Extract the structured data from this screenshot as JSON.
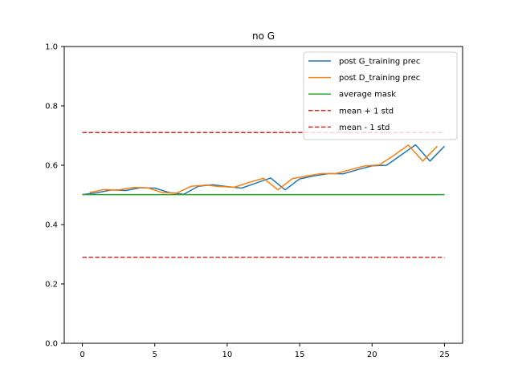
{
  "chart_data": {
    "type": "line",
    "title": "no G",
    "xlabel": "",
    "ylabel": "",
    "xlim": [
      -1.25,
      26.25
    ],
    "ylim": [
      0.0,
      1.0
    ],
    "xticks": [
      0,
      5,
      10,
      15,
      20,
      25
    ],
    "yticks": [
      0.0,
      0.2,
      0.4,
      0.6,
      0.8,
      1.0
    ],
    "xtick_labels": [
      "0",
      "5",
      "10",
      "15",
      "20",
      "25"
    ],
    "ytick_labels": [
      "0.0",
      "0.2",
      "0.4",
      "0.6",
      "0.8",
      "1.0"
    ],
    "grid": false,
    "legend_position": "top-right",
    "series": [
      {
        "name": "post G_training prec",
        "color": "#1f77b4",
        "style": "solid",
        "x": [
          0,
          1,
          2,
          3,
          4,
          5,
          6,
          7,
          8,
          9,
          10,
          11,
          12,
          13,
          14,
          15,
          16,
          17,
          18,
          19,
          20,
          21,
          22,
          23,
          24,
          25
        ],
        "y": [
          0.501,
          0.507,
          0.517,
          0.515,
          0.524,
          0.523,
          0.508,
          0.502,
          0.529,
          0.534,
          0.528,
          0.523,
          0.54,
          0.557,
          0.517,
          0.554,
          0.564,
          0.572,
          0.571,
          0.585,
          0.598,
          0.6,
          0.634,
          0.669,
          0.614,
          0.664
        ]
      },
      {
        "name": "post D_training prec",
        "color": "#ff7f0e",
        "style": "solid",
        "x": [
          0.5,
          1.5,
          2.5,
          3.5,
          4.5,
          5.5,
          6.5,
          7.5,
          8.5,
          9.5,
          10.5,
          11.5,
          12.5,
          13.5,
          14.5,
          15.5,
          16.5,
          17.5,
          18.5,
          19.5,
          20.5,
          21.5,
          22.5,
          23.5,
          24.5
        ],
        "y": [
          0.508,
          0.518,
          0.517,
          0.525,
          0.524,
          0.508,
          0.506,
          0.529,
          0.533,
          0.528,
          0.526,
          0.542,
          0.556,
          0.517,
          0.555,
          0.564,
          0.572,
          0.572,
          0.585,
          0.598,
          0.601,
          0.633,
          0.668,
          0.614,
          0.664
        ]
      },
      {
        "name": "average mask",
        "color": "#2ca02c",
        "style": "solid",
        "x": [
          0,
          25
        ],
        "y": [
          0.501,
          0.501
        ]
      },
      {
        "name": "mean + 1 std",
        "color": "#d62728",
        "style": "dashed",
        "x": [
          0,
          25
        ],
        "y": [
          0.71,
          0.71
        ]
      },
      {
        "name": "mean - 1 std",
        "color": "#d62728",
        "style": "dashed",
        "x": [
          0,
          25
        ],
        "y": [
          0.29,
          0.29
        ]
      }
    ]
  }
}
